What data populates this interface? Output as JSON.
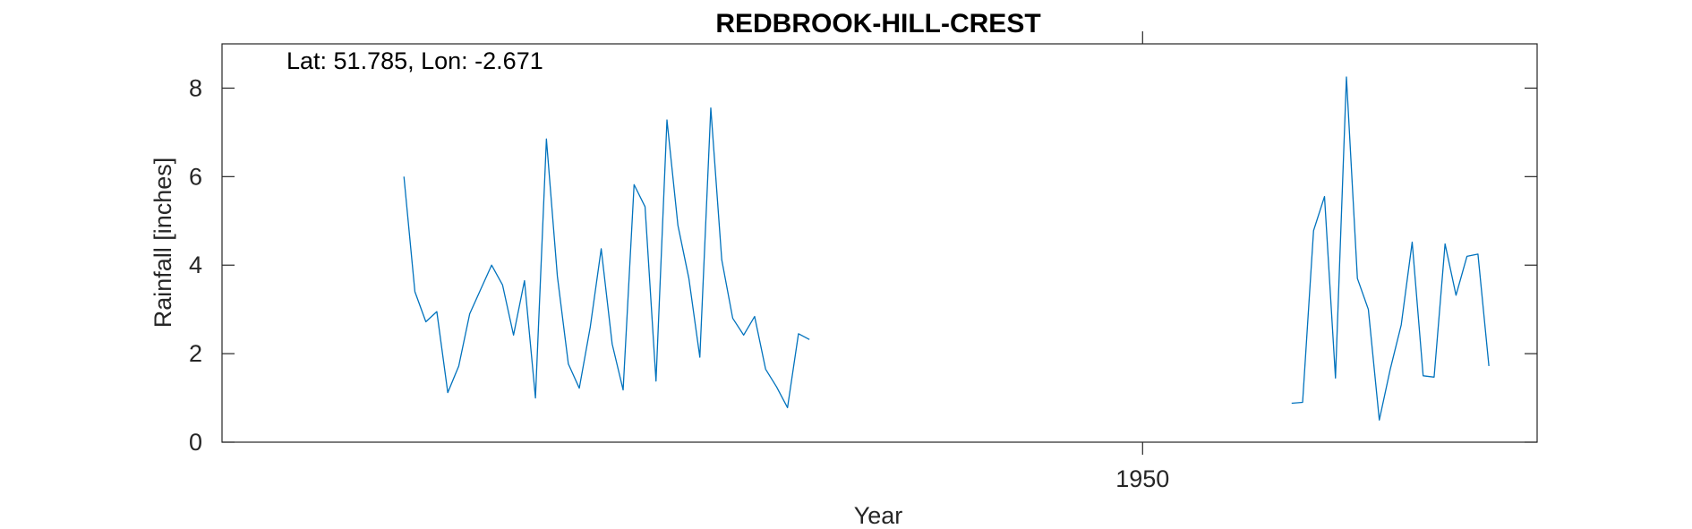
{
  "chart_data": {
    "type": "line",
    "title": "REDBROOK-HILL-CREST",
    "xlabel": "Year",
    "ylabel": "Rainfall [inches]",
    "annotation": "Lat: 51.785, Lon: -2.671",
    "xlim": [
      1908,
      1968
    ],
    "ylim": [
      0,
      9
    ],
    "xticks": [
      1950
    ],
    "yticks": [
      0,
      2,
      4,
      6,
      8
    ],
    "grid": false,
    "line_color": "#0072BD",
    "series": [
      {
        "segments": [
          {
            "x": [
              1916.3,
              1916.8,
              1917.3,
              1917.8,
              1918.3,
              1918.8,
              1919.3,
              1919.8,
              1920.3,
              1920.8,
              1921.3,
              1921.8,
              1922.3,
              1922.8,
              1923.3,
              1923.8,
              1924.3,
              1924.8,
              1925.3,
              1925.8,
              1926.3,
              1926.8,
              1927.3,
              1927.8,
              1928.3,
              1928.8,
              1929.3,
              1929.8,
              1930.3,
              1930.8,
              1931.3,
              1931.8,
              1932.3,
              1932.8,
              1933.3,
              1933.8,
              1934.3,
              1934.8,
              1935.3,
              1935.8,
              1936.3,
              1936.8,
              1937.3,
              1937.8
            ],
            "y": [
              6.0,
              3.4,
              2.72,
              2.95,
              1.12,
              1.72,
              2.9,
              3.45,
              4.0,
              3.55,
              2.42,
              3.65,
              1.0,
              6.85,
              3.75,
              1.77,
              1.22,
              2.6,
              4.37,
              2.22,
              1.18,
              5.82,
              5.32,
              1.38,
              7.28,
              4.9,
              3.7,
              1.92,
              7.55,
              4.12,
              2.8,
              2.42,
              2.84,
              1.65,
              1.25,
              0.78,
              2.45,
              2.32,
              null,
              null,
              null,
              null,
              null,
              null
            ]
          },
          {
            "x": [
              1956.8,
              1957.3,
              1957.8,
              1958.3,
              1958.8,
              1959.3,
              1959.8,
              1960.3,
              1960.8,
              1961.3,
              1961.8,
              1962.3,
              1962.8,
              1963.3,
              1963.8,
              1964.3,
              1964.8,
              1965.3,
              1965.8
            ],
            "y": [
              0.88,
              0.9,
              4.78,
              5.55,
              1.45,
              8.25,
              3.7,
              3.0,
              0.5,
              1.65,
              2.65,
              4.52,
              1.5,
              1.47,
              4.48,
              3.32,
              4.2,
              4.25,
              1.72
            ]
          }
        ]
      }
    ]
  }
}
